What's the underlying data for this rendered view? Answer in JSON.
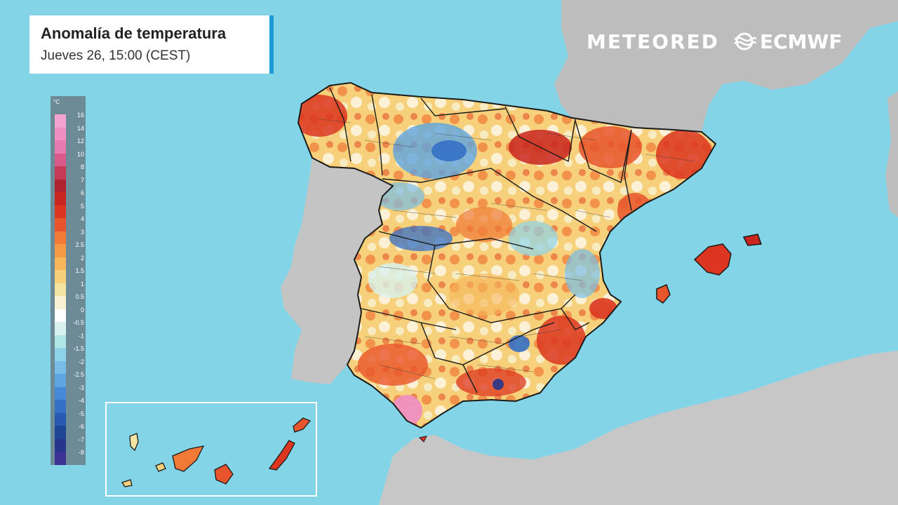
{
  "header": {
    "title": "Anomalía de temperatura",
    "subtitle": "Jueves 26, 15:00 (CEST)"
  },
  "logos": {
    "meteored": "METEORED",
    "ecmwf": "ECMWF"
  },
  "legend": {
    "unit": "°C",
    "labels": [
      "16",
      "14",
      "12",
      "10",
      "8",
      "7",
      "6",
      "5",
      "4",
      "3",
      "2.5",
      "2",
      "1.5",
      "1",
      "0.5",
      "0",
      "-0.5",
      "-1",
      "-1.5",
      "-2",
      "-2.5",
      "-3",
      "-4",
      "-5",
      "-6",
      "-7",
      "-8"
    ],
    "colors": [
      "#f3a3cf",
      "#ee8fc0",
      "#e77aae",
      "#d85a8a",
      "#c73a57",
      "#b02430",
      "#c8261f",
      "#dc3620",
      "#e8552c",
      "#f07a36",
      "#f59a44",
      "#f7b659",
      "#f6d07a",
      "#f3e4a1",
      "#f8f1d4",
      "#ffffff",
      "#d8f2ef",
      "#b1e6e6",
      "#8fd3e8",
      "#79bde6",
      "#5ea4e0",
      "#4689d6",
      "#3570c6",
      "#2859b0",
      "#1f4695",
      "#27358b",
      "#3c3296"
    ]
  },
  "map": {
    "colors": {
      "sea": "#84d4e8",
      "land_gray": "#bdbdbd",
      "warm": "#e8552c",
      "hot": "#c8261f",
      "cool": "#5ea4e0",
      "neutral": "#f8f1d4",
      "pink": "#ee8fc0"
    }
  }
}
